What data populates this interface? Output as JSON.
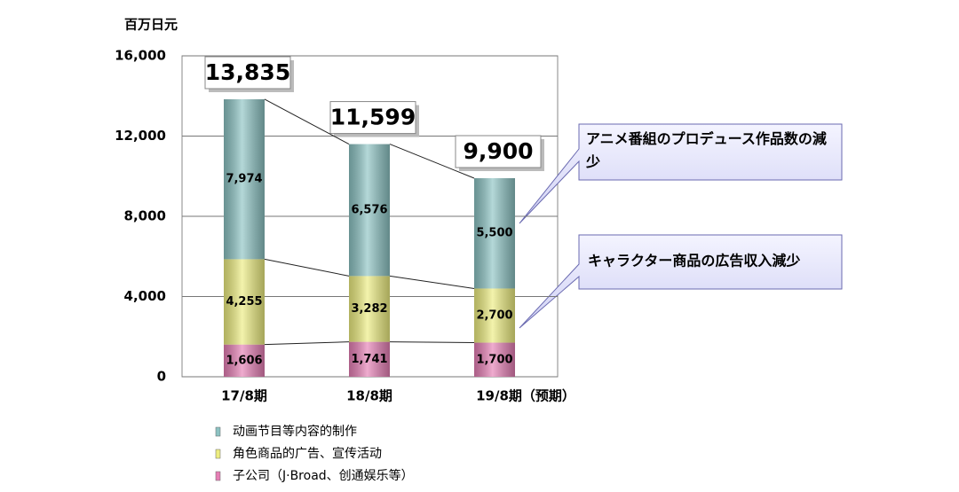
{
  "chart_data": {
    "type": "stacked-bar",
    "y_unit": "百万日元",
    "categories": [
      "17/8期",
      "18/8期",
      "19/8期（预期）"
    ],
    "series": [
      {
        "name": "子公司（J·Broad、创通娱乐等）",
        "color": "#e67fb5",
        "values": [
          1606,
          1741,
          1700
        ],
        "value_labels": [
          "1,606",
          "1,741",
          "1,700"
        ]
      },
      {
        "name": "角色商品的广告、宣传活动",
        "color": "#eded80",
        "values": [
          4255,
          3282,
          2700
        ],
        "value_labels": [
          "4,255",
          "3,282",
          "2,700"
        ]
      },
      {
        "name": "动画节目等内容的制作",
        "color": "#8cc3c3",
        "values": [
          7974,
          6576,
          5500
        ],
        "value_labels": [
          "7,974",
          "6,576",
          "5,500"
        ]
      }
    ],
    "totals": {
      "values": [
        13835,
        11599,
        9900
      ],
      "value_labels": [
        "13,835",
        "11,599",
        "9,900"
      ]
    },
    "ylim": [
      0,
      16000
    ],
    "yticks": [
      0,
      {
        "value": 4000,
        "label": "4,000"
      },
      {
        "value": 8000,
        "label": "8,000"
      },
      {
        "value": 12000,
        "label": "12,000"
      },
      {
        "value": 16000,
        "label": "16,000"
      }
    ],
    "grid": true,
    "annotations": [
      "アニメ番組のプロデュース作品数の減少",
      "キャラクター商品の広告収入減少"
    ]
  }
}
